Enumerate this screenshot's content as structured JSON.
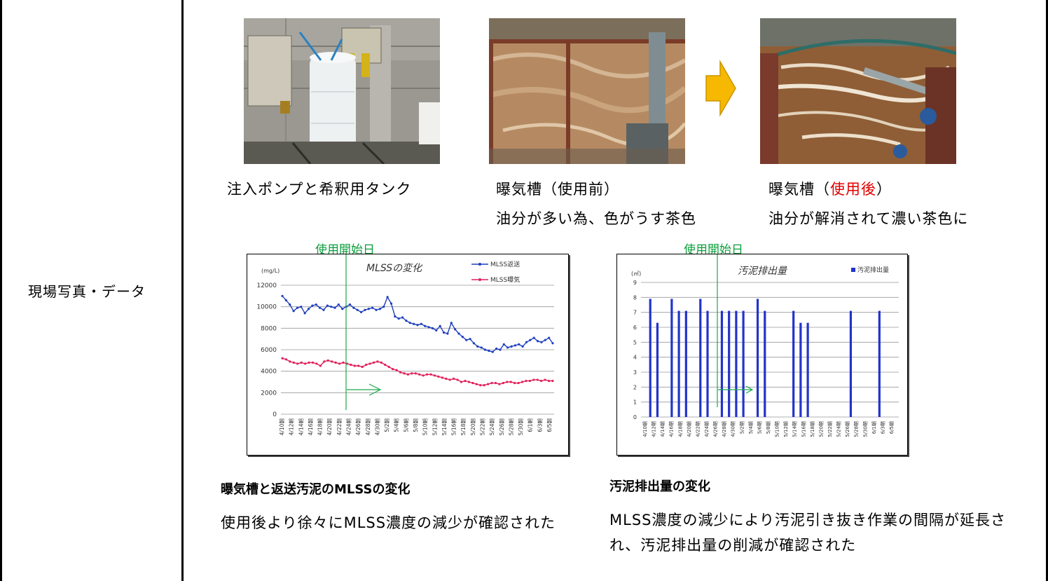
{
  "row_label": "現場写真・データ",
  "photos": {
    "pump": {
      "caption": "注入ポンプと希釈用タンク"
    },
    "before": {
      "title_prefix": "曝気槽（",
      "title_highlight": "使用前",
      "title_suffix": "）",
      "note": "油分が多い為、色がうす茶色"
    },
    "after": {
      "title_prefix": "曝気槽（",
      "title_highlight": "使用後",
      "title_suffix": "）",
      "note": "油分が解消されて濃い茶色に"
    }
  },
  "chart_left": {
    "start_label": "使用開始日",
    "heading": "曝気槽と返送汚泥のMLSSの変化",
    "description": "使用後より徐々にMLSS濃度の減少が確認された"
  },
  "chart_right": {
    "start_label": "使用開始日",
    "heading": "汚泥排出量の変化",
    "description": "MLSS濃度の減少により汚泥引き抜き作業の間隔が延長され、汚泥排出量の削減が確認された"
  },
  "chart_data": [
    {
      "type": "line",
      "title": "MLSSの変化",
      "unit": "(mg/L)",
      "ylim": [
        0,
        12000
      ],
      "yticks": [
        0,
        2000,
        4000,
        6000,
        8000,
        10000,
        12000
      ],
      "grid": true,
      "legend": "top-right",
      "x_tick_labels": [
        "4/10",
        "4/12",
        "4/14",
        "4/16",
        "4/18",
        "4/20",
        "4/22",
        "4/24",
        "4/26",
        "4/28",
        "4/30",
        "5/2",
        "5/4",
        "5/6",
        "5/8",
        "5/10",
        "5/12",
        "5/14",
        "5/16",
        "5/18",
        "5/20",
        "5/22",
        "5/24",
        "5/26",
        "5/28",
        "5/30",
        "6/1",
        "6/3",
        "6/5"
      ],
      "series": [
        {
          "name": "MLSS返送",
          "color": "#1f3fbf",
          "values": [
            11000,
            10600,
            10200,
            9600,
            9900,
            10000,
            9400,
            9800,
            10100,
            10200,
            9900,
            9700,
            10100,
            10000,
            9900,
            10200,
            9800,
            10000,
            10200,
            9900,
            9700,
            9500,
            9700,
            9800,
            9900,
            9700,
            9800,
            10000,
            10900,
            10300,
            9100,
            8900,
            9000,
            8700,
            8500,
            8400,
            8300,
            8400,
            8200,
            8100,
            8000,
            7800,
            8200,
            7600,
            7500,
            8500,
            7900,
            7500,
            7200,
            6900,
            7000,
            6600,
            6300,
            6200,
            6000,
            5900,
            5800,
            6100,
            6000,
            6500,
            6200,
            6300,
            6400,
            6500,
            6300,
            6700,
            6900,
            7100,
            6800,
            6700,
            6900,
            7100,
            6600
          ]
        },
        {
          "name": "MLSS曝気",
          "color": "#e0205a",
          "values": [
            5200,
            5100,
            4900,
            4800,
            4700,
            4800,
            4700,
            4800,
            4800,
            4700,
            4500,
            4900,
            5000,
            4900,
            4800,
            4700,
            4800,
            4700,
            4600,
            4500,
            4500,
            4400,
            4600,
            4700,
            4800,
            4900,
            4800,
            4600,
            4400,
            4200,
            4100,
            3900,
            3800,
            3700,
            3800,
            3800,
            3700,
            3600,
            3700,
            3700,
            3600,
            3500,
            3400,
            3300,
            3200,
            3300,
            3200,
            3000,
            3100,
            3000,
            2900,
            2800,
            2700,
            2700,
            2800,
            2900,
            2900,
            2800,
            2900,
            3000,
            3000,
            2900,
            2900,
            3000,
            3100,
            3100,
            3200,
            3200,
            3100,
            3200,
            3100,
            3100
          ]
        }
      ]
    },
    {
      "type": "bar",
      "title": "汚泥排出量",
      "unit": "(㎥)",
      "ylim": [
        0,
        9
      ],
      "yticks": [
        0,
        1,
        2,
        3,
        4,
        5,
        6,
        7,
        8,
        9
      ],
      "grid": true,
      "legend": "top-right",
      "x_tick_labels": [
        "4/10",
        "4/12",
        "4/14",
        "4/16",
        "4/18",
        "4/20",
        "4/22",
        "4/24",
        "4/26",
        "4/28",
        "4/30",
        "5/2",
        "5/4",
        "5/6",
        "5/8",
        "5/10",
        "5/12",
        "5/14",
        "5/16",
        "5/18",
        "5/20",
        "5/22",
        "5/24",
        "5/26",
        "5/28",
        "5/30",
        "6/1",
        "6/3",
        "6/5"
      ],
      "series": [
        {
          "name": "汚泥排出量",
          "color": "#2233cc",
          "points": [
            [
              1,
              7.9
            ],
            [
              2,
              6.3
            ],
            [
              4,
              7.9
            ],
            [
              5,
              7.1
            ],
            [
              6,
              7.1
            ],
            [
              8,
              7.9
            ],
            [
              9,
              7.1
            ],
            [
              11,
              7.1
            ],
            [
              12,
              7.1
            ],
            [
              13,
              7.1
            ],
            [
              14,
              7.1
            ],
            [
              16,
              7.9
            ],
            [
              17,
              7.1
            ],
            [
              21,
              7.1
            ],
            [
              22,
              6.3
            ],
            [
              23,
              6.3
            ],
            [
              29,
              7.1
            ],
            [
              33,
              7.1
            ]
          ]
        }
      ]
    }
  ]
}
